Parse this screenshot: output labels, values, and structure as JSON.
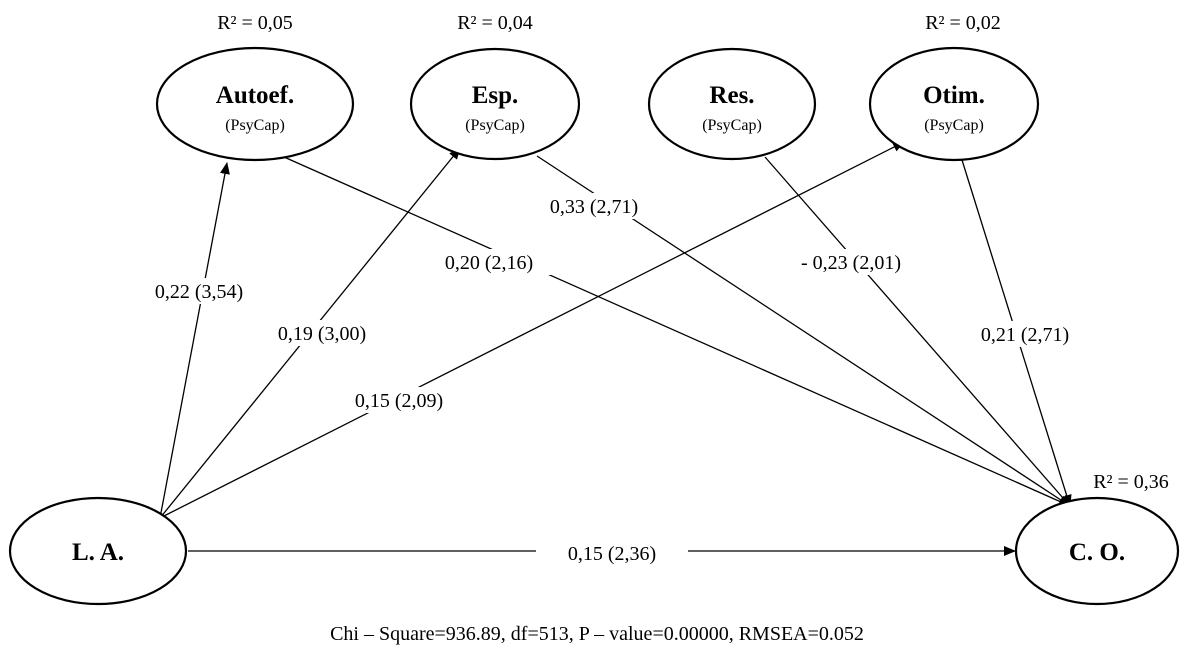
{
  "nodes": {
    "autoef": {
      "label": "Autoef.",
      "sub": "(PsyCap)",
      "r2": "R² = 0,05"
    },
    "esp": {
      "label": "Esp.",
      "sub": "(PsyCap)",
      "r2": "R² = 0,04"
    },
    "res": {
      "label": "Res.",
      "sub": "(PsyCap)"
    },
    "otim": {
      "label": "Otim.",
      "sub": "(PsyCap)",
      "r2": "R² = 0,02"
    },
    "la": {
      "label": "L. A."
    },
    "co": {
      "label": "C. O.",
      "r2": "R² = 0,36"
    }
  },
  "edges": {
    "la_autoef": "0,22 (3,54)",
    "la_esp": "0,19 (3,00)",
    "la_otim": "0,15 (2,09)",
    "la_co": "0,15 (2,36)",
    "autoef_co": "0,20 (2,16)",
    "esp_co": "0,33 (2,71)",
    "res_co": "- 0,23 (2,01)",
    "otim_co": "0,21 (2,71)"
  },
  "fit_stats": "Chi – Square=936.89, df=513, P – value=0.00000, RMSEA=0.052"
}
